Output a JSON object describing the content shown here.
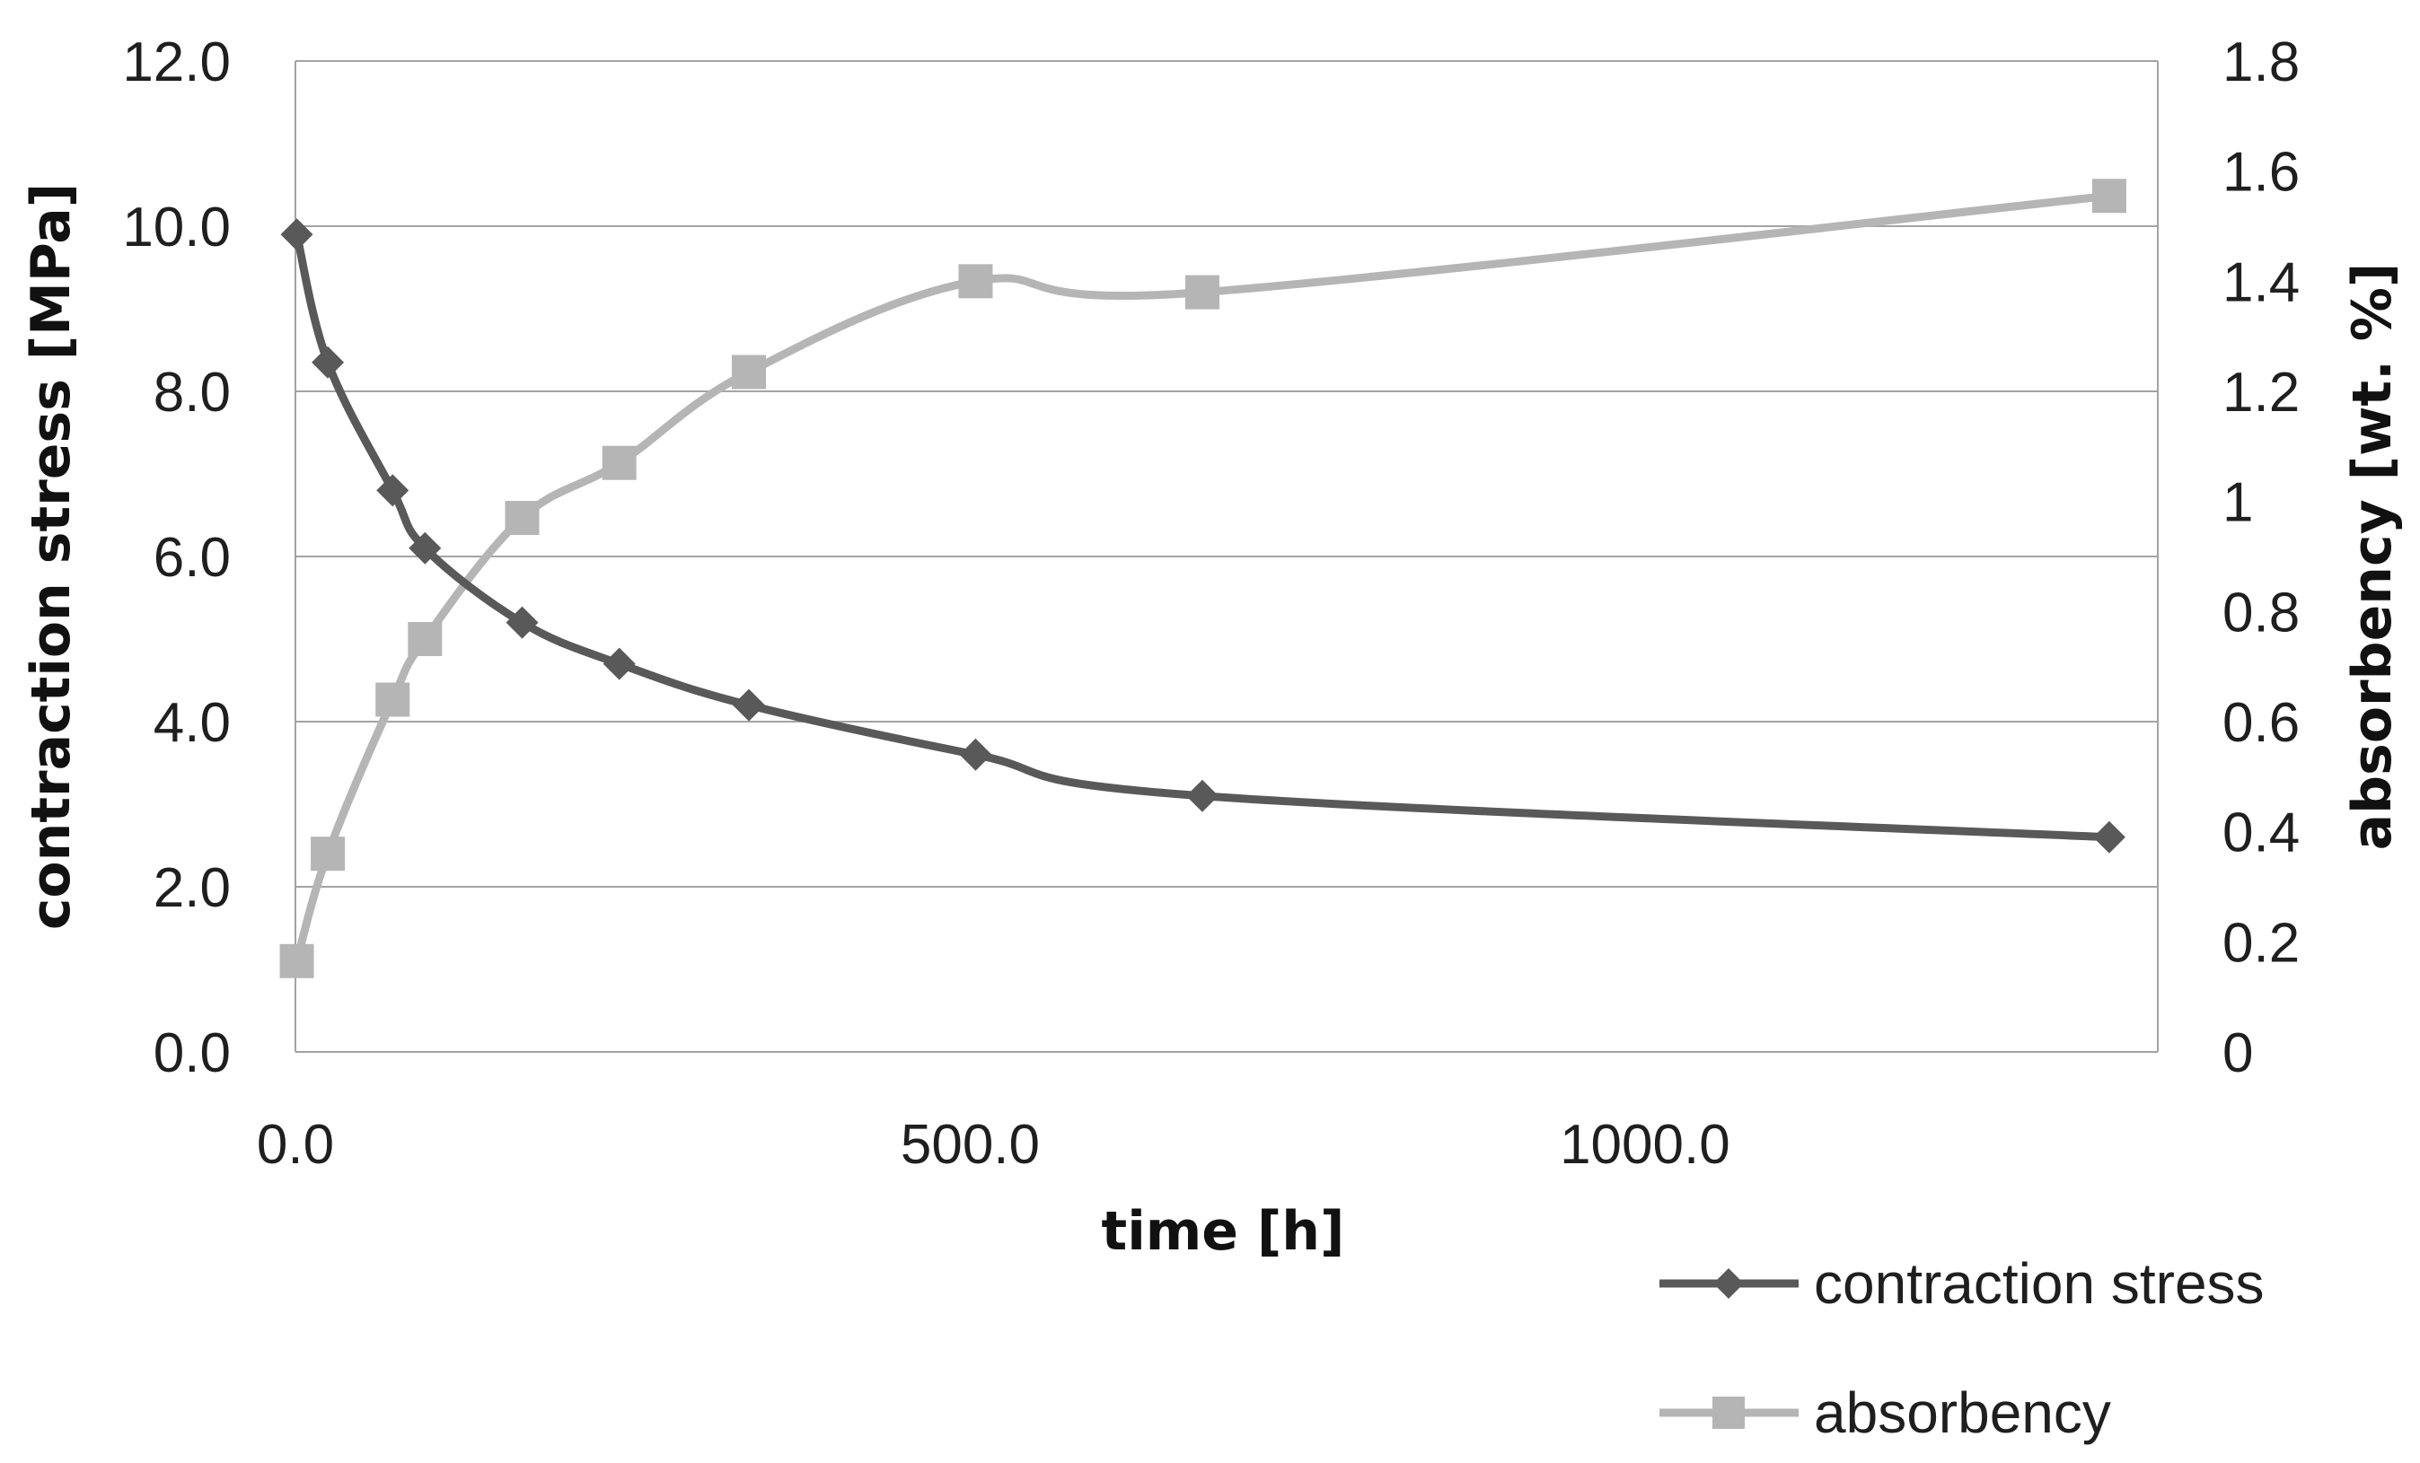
{
  "chart_data": {
    "type": "line",
    "title": "",
    "xlabel": "time [h]",
    "ylabel": "contraction stress [MPa]",
    "y2label": "absorbency [wt. %]",
    "xlim": [
      0,
      1380
    ],
    "ylim": [
      0,
      12
    ],
    "y2lim": [
      0,
      1.8
    ],
    "x_ticks": [
      "0.0",
      "500.0",
      "1000.0"
    ],
    "x_tick_values": [
      0,
      500,
      1000
    ],
    "y_ticks": [
      "0.0",
      "2.0",
      "4.0",
      "6.0",
      "8.0",
      "10.0",
      "12.0"
    ],
    "y_tick_values": [
      0,
      2,
      4,
      6,
      8,
      10,
      12
    ],
    "y2_ticks": [
      "0",
      "0.2",
      "0.4",
      "0.6",
      "0.8",
      "1",
      "1.2",
      "1.4",
      "1.6",
      "1.8"
    ],
    "y2_tick_values": [
      0,
      0.2,
      0.4,
      0.6,
      0.8,
      1,
      1.2,
      1.4,
      1.6,
      1.8
    ],
    "grid": "horizontal",
    "legend_position": "bottom-right",
    "series": [
      {
        "name": "contraction stress",
        "axis": "left",
        "marker": "diamond",
        "color": "#595959",
        "x": [
          1,
          24,
          72,
          96,
          168,
          240,
          336,
          504,
          672,
          1344
        ],
        "values": [
          9.9,
          8.35,
          6.8,
          6.1,
          5.2,
          4.7,
          4.2,
          3.6,
          3.1,
          2.6
        ]
      },
      {
        "name": "absorbency",
        "axis": "right",
        "marker": "square",
        "color": "#b5b5b5",
        "x": [
          1,
          24,
          72,
          96,
          168,
          240,
          336,
          504,
          672,
          1344
        ],
        "values": [
          0.165,
          0.36,
          0.64,
          0.75,
          0.97,
          1.07,
          1.235,
          1.4,
          1.38,
          1.555
        ]
      }
    ]
  }
}
